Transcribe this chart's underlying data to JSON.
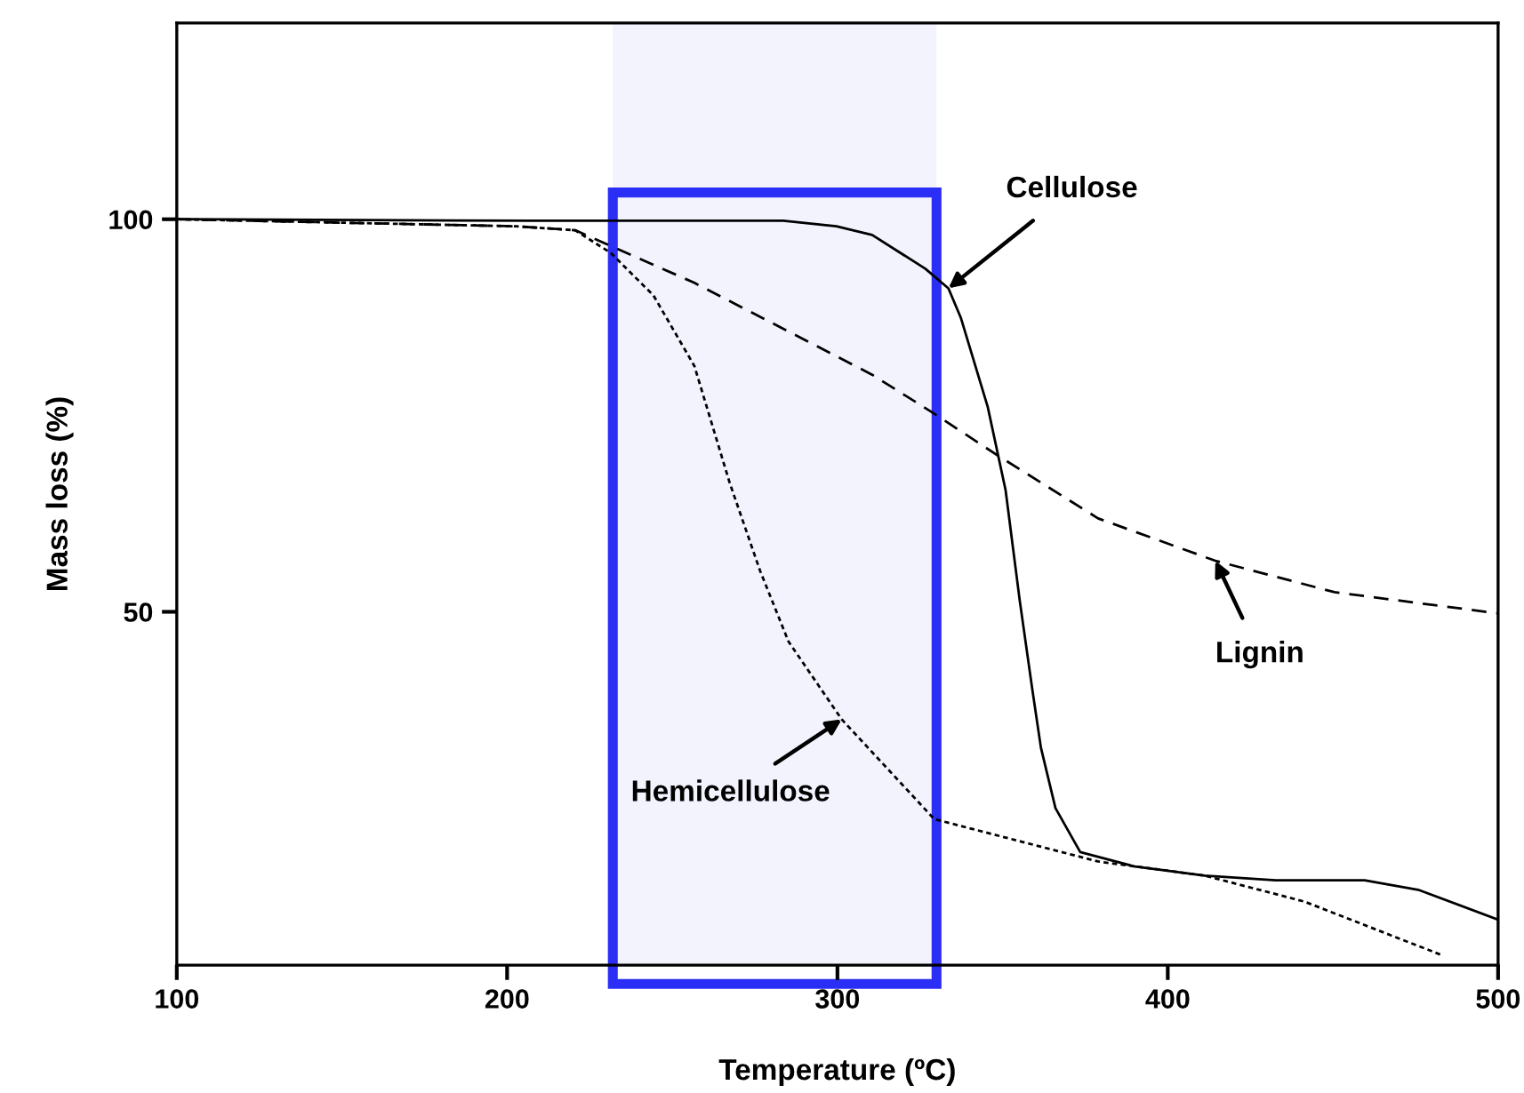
{
  "chart_data": {
    "type": "line",
    "xlabel": "Temperature (ºC)",
    "ylabel": "Mass loss (%)",
    "xlim": [
      100,
      500
    ],
    "ylim": [
      5,
      125
    ],
    "xticks": [
      100,
      200,
      300,
      400,
      500
    ],
    "yticks": [
      50,
      100
    ],
    "grid": false,
    "legend": false,
    "marker": "none",
    "series": [
      {
        "color": "#000000",
        "line_style": "solid",
        "x": [
          100,
          208.2,
          283.6,
          299.7,
          310.5,
          326.6,
          333.6,
          337.4,
          345.5,
          350.9,
          355.2,
          359.0,
          361.6,
          366.0,
          373.5,
          389.6,
          411.2,
          432.7,
          459.6,
          475.8,
          500
        ],
        "values": [
          100,
          99.8,
          99.8,
          99.1,
          98.0,
          93.7,
          91.2,
          87.4,
          76.1,
          65.5,
          51.4,
          40.1,
          32.7,
          25.0,
          19.4,
          17.6,
          16.4,
          15.8,
          15.8,
          14.6,
          10.8
        ]
      },
      {
        "color": "#000000",
        "line_style": "dashed",
        "x": [
          100,
          202.8,
          220.6,
          256.7,
          310.5,
          328.3,
          348.2,
          378.9,
          414.4,
          450.5,
          500
        ],
        "values": [
          100,
          99.1,
          98.6,
          91.9,
          80.2,
          75.5,
          70.0,
          61.9,
          56.5,
          52.5,
          49.8
        ]
      },
      {
        "color": "#000000",
        "line_style": "dotted",
        "x": [
          100,
          202.8,
          220.6,
          231.4,
          244.3,
          256.7,
          267.4,
          276.6,
          285.2,
          301.3,
          329.3,
          378.9,
          411.2,
          441.3,
          482.8
        ],
        "values": [
          100,
          99.1,
          98.6,
          95.7,
          90.3,
          81.3,
          66.4,
          55.2,
          46.2,
          36.3,
          23.6,
          18.2,
          16.4,
          13.1,
          6.3
        ]
      }
    ],
    "bands": [
      {
        "axis": "x",
        "from": 232,
        "to": 330,
        "color": "#2b2ef5"
      }
    ],
    "annotations": [
      {
        "text": "Cellulose",
        "x": 333.6,
        "y": 91.2
      },
      {
        "text": "Lignin",
        "x": 414.4,
        "y": 56.5
      },
      {
        "text": "Hemicellulose",
        "x": 301.3,
        "y": 36.3
      }
    ]
  }
}
